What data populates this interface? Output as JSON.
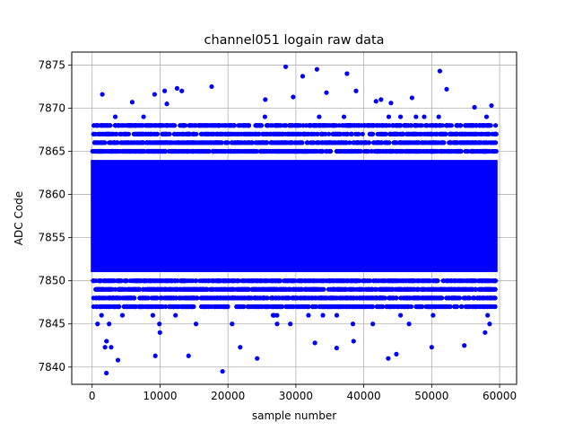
{
  "chart_data": {
    "type": "scatter",
    "title": "channel051 logain raw data",
    "xlabel": "sample number",
    "ylabel": "ADC Code",
    "xlim": [
      -3000,
      62500
    ],
    "ylim": [
      7838,
      7876.5
    ],
    "xticks": [
      0,
      10000,
      20000,
      30000,
      40000,
      50000,
      60000
    ],
    "yticks": [
      7840,
      7845,
      7850,
      7855,
      7860,
      7865,
      7870,
      7875
    ],
    "grid": true,
    "legend": "none",
    "marker_color": "#0000ff",
    "series": [
      {
        "x_range": [
          0,
          59500
        ],
        "sample_count": 59500,
        "dense_band": [
          7851,
          7864
        ],
        "typical_range": [
          7846,
          7868
        ],
        "outliers": [
          {
            "x": 1500,
            "y": 7871.6
          },
          {
            "x": 1900,
            "y": 7842.3
          },
          {
            "x": 2100,
            "y": 7839.3
          },
          {
            "x": 3800,
            "y": 7840.8
          },
          {
            "x": 2800,
            "y": 7842.3
          },
          {
            "x": 9200,
            "y": 7871.6
          },
          {
            "x": 9300,
            "y": 7841.3
          },
          {
            "x": 12500,
            "y": 7872.3
          },
          {
            "x": 14200,
            "y": 7841.3
          },
          {
            "x": 17600,
            "y": 7872.5
          },
          {
            "x": 19200,
            "y": 7839.5
          },
          {
            "x": 21800,
            "y": 7842.3
          },
          {
            "x": 24300,
            "y": 7841.0
          },
          {
            "x": 28500,
            "y": 7874.8
          },
          {
            "x": 31000,
            "y": 7873.7
          },
          {
            "x": 33100,
            "y": 7874.5
          },
          {
            "x": 32800,
            "y": 7842.8
          },
          {
            "x": 36000,
            "y": 7842.2
          },
          {
            "x": 38500,
            "y": 7843.0
          },
          {
            "x": 43600,
            "y": 7841.0
          },
          {
            "x": 44800,
            "y": 7841.5
          },
          {
            "x": 47100,
            "y": 7871.2
          },
          {
            "x": 50000,
            "y": 7842.3
          },
          {
            "x": 51200,
            "y": 7874.3
          },
          {
            "x": 52200,
            "y": 7872.2
          },
          {
            "x": 54800,
            "y": 7842.5
          },
          {
            "x": 58800,
            "y": 7870.3
          },
          {
            "x": 5900,
            "y": 7870.7
          },
          {
            "x": 11000,
            "y": 7870.5
          },
          {
            "x": 13200,
            "y": 7872.0
          },
          {
            "x": 25500,
            "y": 7871.0
          },
          {
            "x": 29600,
            "y": 7871.3
          },
          {
            "x": 34500,
            "y": 7871.8
          },
          {
            "x": 41800,
            "y": 7870.8
          },
          {
            "x": 44000,
            "y": 7870.6
          },
          {
            "x": 56300,
            "y": 7870.1
          }
        ]
      }
    ]
  }
}
